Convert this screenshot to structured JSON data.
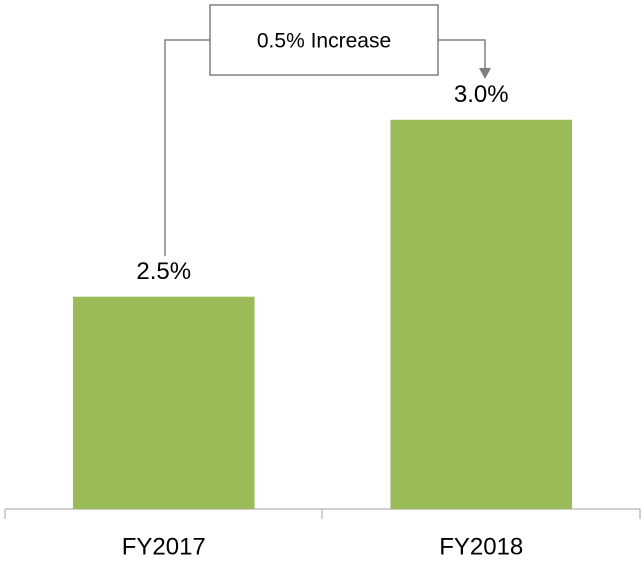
{
  "chart_data": {
    "type": "bar",
    "categories": [
      "FY2017",
      "FY2018"
    ],
    "values": [
      2.5,
      3.0
    ],
    "value_labels": [
      "2.5%",
      "3.0%"
    ],
    "color": "#9bbb59",
    "ylim": [
      1.9,
      3.2
    ],
    "annotation": "0.5% Increase"
  }
}
